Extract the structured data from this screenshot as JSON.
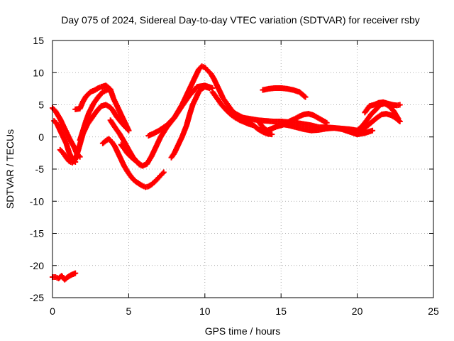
{
  "chart_data": {
    "type": "scatter",
    "title": "Day 075 of 2024, Sidereal Day-to-day VTEC variation (SDTVAR) for receiver rsby",
    "xlabel": "GPS time / hours",
    "ylabel": "SDTVAR / TECUs",
    "xlim": [
      0,
      25
    ],
    "ylim": [
      -25,
      15
    ],
    "xticks": [
      0,
      5,
      10,
      15,
      20,
      25
    ],
    "yticks": [
      -25,
      -20,
      -15,
      -10,
      -5,
      0,
      5,
      10,
      15
    ],
    "grid": true,
    "marker": "plus",
    "color": "#ff0000",
    "series": [
      {
        "name": "s1",
        "x": [
          0.0,
          0.2,
          0.4,
          0.6,
          0.8,
          1.0,
          1.2,
          1.5
        ],
        "y": [
          -21.8,
          -21.8,
          -22.0,
          -21.6,
          -22.2,
          -21.8,
          -21.5,
          -21.2
        ]
      },
      {
        "name": "s2",
        "x": [
          0.0,
          0.2,
          0.5,
          0.8,
          1.1,
          1.4,
          1.6,
          1.8
        ],
        "y": [
          4.5,
          4.0,
          2.8,
          1.3,
          -0.2,
          -1.5,
          -2.6,
          -3.1
        ]
      },
      {
        "name": "s3",
        "x": [
          0.1,
          0.3,
          0.6,
          0.9,
          1.1,
          1.3,
          1.5
        ],
        "y": [
          2.5,
          2.0,
          0.5,
          -1.0,
          -2.5,
          -3.5,
          -3.9
        ]
      },
      {
        "name": "s4",
        "x": [
          0.5,
          0.7,
          0.9,
          1.1,
          1.3,
          1.5,
          1.7,
          2.0,
          2.3,
          2.6,
          2.9,
          3.2,
          3.5,
          3.8,
          4.0,
          4.2,
          4.5,
          4.8,
          5.0
        ],
        "y": [
          -2.0,
          -2.5,
          -3.2,
          -3.8,
          -4.0,
          -3.5,
          -2.0,
          0.5,
          2.0,
          3.0,
          4.0,
          4.8,
          5.0,
          4.6,
          4.0,
          3.2,
          2.3,
          1.5,
          1.0
        ]
      },
      {
        "name": "s5",
        "x": [
          1.5,
          1.8,
          2.0,
          2.2,
          2.5,
          2.8,
          3.0,
          3.2,
          3.5,
          3.8,
          4.0,
          4.2,
          4.4,
          4.6,
          4.8,
          5.0
        ],
        "y": [
          4.3,
          4.4,
          5.5,
          6.3,
          7.0,
          7.3,
          7.6,
          7.8,
          8.0,
          7.4,
          6.0,
          5.0,
          4.0,
          3.0,
          2.0,
          1.0
        ]
      },
      {
        "name": "s6",
        "x": [
          1.8,
          2.0,
          2.2,
          2.4,
          2.7,
          3.0,
          3.3,
          3.5,
          3.7,
          3.8
        ],
        "y": [
          -0.5,
          1.0,
          2.5,
          3.8,
          5.2,
          6.2,
          7.0,
          7.2,
          7.5,
          7.0
        ]
      },
      {
        "name": "s7",
        "x": [
          3.3,
          3.5,
          3.7,
          3.9,
          4.1,
          4.3,
          4.5,
          4.7,
          4.9,
          5.1,
          5.3,
          5.5,
          5.7,
          5.9,
          6.1,
          6.3,
          6.5,
          6.7,
          6.9,
          7.1,
          7.3
        ],
        "y": [
          -1.0,
          -0.6,
          -0.3,
          -0.8,
          -1.5,
          -2.5,
          -3.5,
          -4.5,
          -5.3,
          -6.0,
          -6.6,
          -7.0,
          -7.3,
          -7.6,
          -7.8,
          -7.7,
          -7.4,
          -7.0,
          -6.5,
          -6.0,
          -5.5
        ]
      },
      {
        "name": "s8",
        "x": [
          4.5,
          4.7,
          4.9,
          5.2,
          5.5,
          5.7,
          5.9
        ],
        "y": [
          -1.2,
          -1.8,
          -2.5,
          -3.2,
          -3.8,
          -4.3,
          -4.5
        ]
      },
      {
        "name": "s9",
        "x": [
          3.8,
          4.1,
          4.4,
          4.7,
          5.0,
          5.3,
          5.6,
          5.9,
          6.2,
          6.5,
          6.8,
          7.1,
          7.5,
          8.0,
          8.5,
          9.0,
          9.5,
          10.0,
          10.5
        ],
        "y": [
          2.6,
          1.5,
          0.5,
          -0.7,
          -2.0,
          -3.2,
          -4.0,
          -4.5,
          -4.2,
          -3.0,
          -1.5,
          0.0,
          1.5,
          3.0,
          4.8,
          6.5,
          7.8,
          8.0,
          7.6
        ]
      },
      {
        "name": "s10",
        "x": [
          6.3,
          6.6,
          7.0,
          7.5,
          8.0,
          8.5,
          9.0,
          9.3,
          9.6,
          9.8,
          10.0,
          10.2,
          10.4,
          10.6,
          10.8,
          11.0,
          11.2,
          11.5,
          11.8,
          12.1,
          12.5,
          13.0
        ],
        "y": [
          0.2,
          0.5,
          1.0,
          1.8,
          3.0,
          5.0,
          7.5,
          9.0,
          10.5,
          11.0,
          10.8,
          10.3,
          9.8,
          9.0,
          8.0,
          7.0,
          6.0,
          5.0,
          4.0,
          3.5,
          3.0,
          2.5
        ]
      },
      {
        "name": "s11",
        "x": [
          7.8,
          8.0,
          8.2,
          8.5,
          8.8,
          9.0,
          9.2,
          9.4,
          9.6,
          9.8,
          10.0,
          10.3
        ],
        "y": [
          -3.2,
          -2.5,
          -1.5,
          0.0,
          1.8,
          3.5,
          5.0,
          6.0,
          7.0,
          7.5,
          7.8,
          7.6
        ]
      },
      {
        "name": "s12",
        "x": [
          10.5,
          10.8,
          11.1,
          11.4,
          11.7,
          12.0,
          12.3,
          12.6,
          12.9,
          13.2,
          13.5,
          13.8,
          14.1,
          14.4
        ],
        "y": [
          7.0,
          6.0,
          5.0,
          4.2,
          3.5,
          3.0,
          2.6,
          2.3,
          2.0,
          1.8,
          1.2,
          0.8,
          0.5,
          0.4
        ]
      },
      {
        "name": "s13",
        "x": [
          13.8,
          14.2,
          14.6,
          15.0,
          15.4,
          15.8,
          16.2,
          16.6
        ],
        "y": [
          7.3,
          7.5,
          7.6,
          7.6,
          7.5,
          7.3,
          7.0,
          6.2
        ]
      },
      {
        "name": "s14",
        "x": [
          12.5,
          13.0,
          13.5,
          14.0,
          14.5,
          15.0,
          15.5,
          16.0,
          16.5,
          17.0,
          17.5,
          18.0,
          18.5,
          19.0,
          19.5,
          20.0
        ],
        "y": [
          3.0,
          2.8,
          2.6,
          2.5,
          2.4,
          2.4,
          2.3,
          2.2,
          2.0,
          1.8,
          1.5,
          1.5,
          1.4,
          1.3,
          1.2,
          1.0
        ]
      },
      {
        "name": "s15",
        "x": [
          13.5,
          13.8,
          14.1,
          14.4,
          14.7,
          15.0,
          15.3,
          15.6,
          15.9,
          16.2,
          16.5,
          16.8,
          17.1,
          17.4,
          17.7,
          18.0
        ],
        "y": [
          2.5,
          1.5,
          1.0,
          1.3,
          1.6,
          1.8,
          2.0,
          2.5,
          2.8,
          3.2,
          3.5,
          3.6,
          3.4,
          3.0,
          2.6,
          2.2
        ]
      },
      {
        "name": "s16",
        "x": [
          15.0,
          15.5,
          16.0,
          16.5,
          17.0,
          17.5,
          18.0,
          18.5,
          19.0,
          19.5,
          20.0,
          20.5,
          21.0
        ],
        "y": [
          2.0,
          1.8,
          1.5,
          1.2,
          1.0,
          1.1,
          1.3,
          1.4,
          1.2,
          0.8,
          0.4,
          0.6,
          1.0
        ]
      },
      {
        "name": "s17",
        "x": [
          20.0,
          20.3,
          20.6,
          20.9,
          21.2,
          21.5,
          21.8,
          22.1,
          22.4,
          22.7
        ],
        "y": [
          1.0,
          1.6,
          2.5,
          3.5,
          4.2,
          5.0,
          5.2,
          4.8,
          4.0,
          2.8
        ]
      },
      {
        "name": "s18",
        "x": [
          20.5,
          20.8,
          21.1,
          21.4,
          21.7,
          22.0,
          22.3,
          22.6,
          22.8
        ],
        "y": [
          3.8,
          4.8,
          5.0,
          5.3,
          5.4,
          5.2,
          5.0,
          4.9,
          5.0
        ]
      },
      {
        "name": "s19",
        "x": [
          19.8,
          20.1,
          20.4,
          20.7,
          21.0,
          21.3,
          21.6,
          21.9,
          22.2,
          22.5,
          22.8
        ],
        "y": [
          0.6,
          0.8,
          1.2,
          1.8,
          2.4,
          3.0,
          3.5,
          3.6,
          3.4,
          3.0,
          2.4
        ]
      }
    ]
  }
}
